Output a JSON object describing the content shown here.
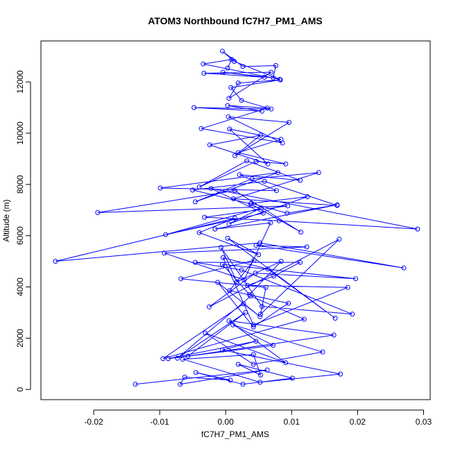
{
  "chart_data": {
    "type": "line",
    "title": "ATOM3 Northbound fC7H7_PM1_AMS",
    "xlabel": "fC7H7_PM1_AMS",
    "ylabel": "Altitude (m)",
    "xlim": [
      -0.028,
      0.031
    ],
    "ylim": [
      -400,
      13600
    ],
    "xticks": [
      -0.02,
      -0.01,
      0.0,
      0.01,
      0.02,
      0.03
    ],
    "xtick_labels": [
      "-0.02",
      "-0.01",
      "0.00",
      "0.01",
      "0.02",
      "0.03"
    ],
    "yticks": [
      0,
      2000,
      4000,
      6000,
      8000,
      10000,
      12000
    ],
    "ytick_labels": [
      "0",
      "2000",
      "4000",
      "6000",
      "8000",
      "10000",
      "12000"
    ],
    "grid": false,
    "series_color": "#0000ff",
    "series": [
      {
        "marker": "open-circle",
        "x": [
          -0.0137,
          0.0063,
          -0.0069,
          -0.0062,
          0.0007,
          -0.0045,
          0.0026,
          0.0101,
          0.0019,
          0.0053,
          0.0042,
          -0.0065,
          0.0052,
          0.0174,
          -0.0005,
          0.0046,
          -0.0087,
          0.0072,
          0.0011,
          0.0147,
          0.0042,
          -0.0031,
          0.0091,
          0.0005,
          0.0164,
          -0.0057,
          0.003,
          -0.0073,
          0.0038,
          0.0119,
          -0.0095,
          0.0027,
          0.0052,
          -0.0012,
          0.0042,
          0.0095,
          0.0006,
          0.0043,
          -0.0068,
          0.0061,
          0.0053,
          0.0172,
          -0.0025,
          0.0045,
          0.0197,
          -0.0005,
          0.0036,
          0.0084,
          0.0017,
          -0.0007,
          0.0055,
          0.0192,
          0.0024,
          -0.0046,
          0.0113,
          0.0073,
          0.0033,
          0.0185,
          0.0042,
          -0.0004,
          0.0064,
          0.0166,
          0.0003,
          0.005,
          -0.004,
          0.0014,
          -0.0258,
          0.0052,
          0.027,
          0.0046,
          0.0123,
          -0.0093,
          0.0028,
          0.0068,
          -0.0016,
          0.0169,
          0.0093,
          0.0039,
          0.0124,
          0.0005,
          0.0054,
          -0.0091,
          0.0057,
          -0.0022,
          0.0291,
          0.0081,
          -0.0032,
          0.0094,
          -0.0194,
          0.0014,
          0.0114,
          0.0038,
          -0.005,
          0.0059,
          0.0169,
          0.0012,
          0.0141,
          0.004,
          -0.0046,
          0.0079,
          -0.0099,
          0.0077,
          0.0021,
          0.0113,
          0.0032,
          -0.004,
          0.0046,
          0.0091,
          0.0019,
          0.0084,
          0.0006,
          0.0064,
          -0.0024,
          0.0053,
          0.0014,
          0.0096,
          0.0004,
          0.0086,
          -0.0037,
          0.0063,
          0.0003,
          0.0055,
          -0.0048,
          0.0069,
          0.0024,
          0.0008,
          0.0083,
          0.0019,
          0.0005,
          0.0069,
          -0.0033,
          0.0059,
          -0.0004,
          0.0072,
          0.0076,
          0.0026,
          -0.0005,
          0.0013,
          0.0082,
          -0.0034,
          0.0009,
          0.0003
        ],
        "y": [
          200,
          760,
          200,
          480,
          360,
          660,
          200,
          440,
          980,
          560,
          1360,
          1180,
          280,
          600,
          1540,
          1880,
          1200,
          1720,
          2520,
          1460,
          980,
          2200,
          1040,
          2680,
          2120,
          1300,
          3000,
          1220,
          3640,
          2740,
          1200,
          3340,
          2840,
          4180,
          2440,
          3360,
          3860,
          5040,
          4320,
          3980,
          2940,
          5860,
          3220,
          4540,
          4320,
          4880,
          3700,
          5000,
          4200,
          5540,
          3240,
          2940,
          4660,
          4960,
          4960,
          4420,
          4060,
          3980,
          2520,
          5140,
          4700,
          2780,
          5900,
          5260,
          6120,
          6680,
          5000,
          5720,
          4740,
          5620,
          5560,
          5320,
          4280,
          6500,
          6260,
          7200,
          6880,
          7260,
          7520,
          6460,
          7080,
          6040,
          6880,
          7840,
          6260,
          6580,
          6720,
          7160,
          6900,
          7760,
          6140,
          7240,
          7780,
          8120,
          7180,
          7440,
          8460,
          8220,
          7320,
          8460,
          7860,
          7760,
          8380,
          8160,
          8920,
          7900,
          8900,
          8800,
          9240,
          9760,
          10160,
          8800,
          9540,
          9920,
          9120,
          10420,
          10640,
          9620,
          10180,
          10980,
          11080,
          10860,
          11000,
          10940,
          11280,
          11780,
          12080,
          11960,
          11360,
          12380,
          12340,
          12180,
          12380,
          12160,
          12640,
          12600,
          13200,
          12800,
          12100,
          12700,
          12880,
          12540
        ]
      }
    ]
  }
}
